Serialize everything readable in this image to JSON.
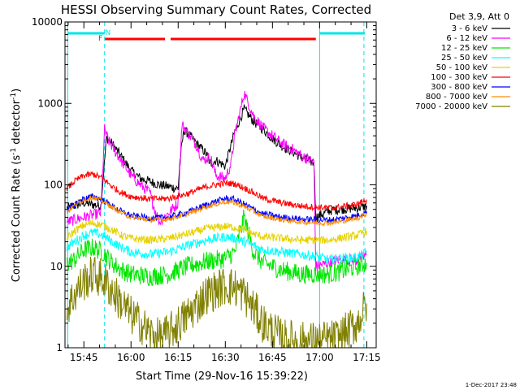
{
  "chart_data": {
    "type": "line",
    "title": "HESSI Observing Summary Count Rates, Corrected",
    "xlabel": "Start Time (29-Nov-16 15:39:22)",
    "ylabel_prefix": "Corrected Count Rate (s",
    "ylabel_sup1": "-1",
    "ylabel_mid": " detector",
    "ylabel_sup2": "-1",
    "ylabel_suffix": ")",
    "x_range_minutes": [
      15.65,
      17.3
    ],
    "xlim": [
      "15:39",
      "17:18"
    ],
    "ylim": [
      1,
      10000
    ],
    "y_scale": "log",
    "grid": false,
    "legend_placement": "right",
    "legend_title": "Det 3,9, Att 0",
    "footer": "1-Dec-2017 23:48",
    "x_ticks": [
      {
        "label": "15:45",
        "hour": 15.75
      },
      {
        "label": "16:00",
        "hour": 16.0
      },
      {
        "label": "16:15",
        "hour": 16.25
      },
      {
        "label": "16:30",
        "hour": 16.5
      },
      {
        "label": "16:45",
        "hour": 16.75
      },
      {
        "label": "17:00",
        "hour": 17.0
      },
      {
        "label": "17:15",
        "hour": 17.25
      }
    ],
    "y_ticks": [
      {
        "label": "1",
        "value": 1
      },
      {
        "label": "10",
        "value": 10
      },
      {
        "label": "100",
        "value": 100
      },
      {
        "label": "1000",
        "value": 1000
      },
      {
        "label": "10000",
        "value": 10000
      }
    ],
    "flags": {
      "labels": {
        "F": "F",
        "N": "N"
      },
      "colors": {
        "night": "#00e5e5",
        "flare": "#ff0000",
        "saa": "#00e5e5"
      },
      "night_intervals": [
        [
          15.665,
          15.86
        ],
        [
          17.0,
          17.24
        ]
      ],
      "flare_intervals": [
        [
          15.862,
          16.18
        ],
        [
          16.21,
          16.98
        ]
      ],
      "F_marker_hour": 15.838,
      "N_marker_hour": 15.878,
      "night_boundaries": [
        15.665,
        15.86,
        17.0,
        17.235
      ]
    },
    "series": [
      {
        "name": "3 - 6 keV",
        "color": "#000000",
        "points": [
          [
            15.66,
            52
          ],
          [
            15.75,
            60
          ],
          [
            15.84,
            55
          ],
          [
            15.87,
            380
          ],
          [
            15.9,
            320
          ],
          [
            15.95,
            220
          ],
          [
            16.0,
            150
          ],
          [
            16.05,
            120
          ],
          [
            16.1,
            110
          ],
          [
            16.15,
            100
          ],
          [
            16.2,
            95
          ],
          [
            16.25,
            90
          ],
          [
            16.26,
            200
          ],
          [
            16.28,
            470
          ],
          [
            16.3,
            430
          ],
          [
            16.35,
            320
          ],
          [
            16.4,
            240
          ],
          [
            16.42,
            180
          ],
          [
            16.45,
            200
          ],
          [
            16.5,
            170
          ],
          [
            16.55,
            450
          ],
          [
            16.6,
            850
          ],
          [
            16.65,
            600
          ],
          [
            16.7,
            480
          ],
          [
            16.75,
            370
          ],
          [
            16.8,
            300
          ],
          [
            16.85,
            260
          ],
          [
            16.9,
            220
          ],
          [
            16.94,
            200
          ],
          [
            16.97,
            185
          ],
          [
            16.98,
            40
          ],
          [
            17.05,
            48
          ],
          [
            17.1,
            50
          ],
          [
            17.2,
            52
          ],
          [
            17.25,
            55
          ]
        ]
      },
      {
        "name": "6 - 12 keV",
        "color": "#ff00ff",
        "points": [
          [
            15.66,
            35
          ],
          [
            15.75,
            40
          ],
          [
            15.84,
            45
          ],
          [
            15.86,
            480
          ],
          [
            15.88,
            350
          ],
          [
            15.92,
            250
          ],
          [
            15.96,
            180
          ],
          [
            16.0,
            130
          ],
          [
            16.05,
            100
          ],
          [
            16.1,
            80
          ],
          [
            16.12,
            55
          ],
          [
            16.15,
            35
          ],
          [
            16.2,
            45
          ],
          [
            16.25,
            60
          ],
          [
            16.27,
            550
          ],
          [
            16.3,
            440
          ],
          [
            16.35,
            300
          ],
          [
            16.38,
            200
          ],
          [
            16.42,
            220
          ],
          [
            16.45,
            130
          ],
          [
            16.5,
            120
          ],
          [
            16.53,
            180
          ],
          [
            16.55,
            400
          ],
          [
            16.6,
            1350
          ],
          [
            16.65,
            700
          ],
          [
            16.7,
            500
          ],
          [
            16.75,
            400
          ],
          [
            16.8,
            320
          ],
          [
            16.85,
            280
          ],
          [
            16.9,
            230
          ],
          [
            16.95,
            200
          ],
          [
            16.97,
            190
          ],
          [
            16.98,
            10
          ],
          [
            17.05,
            11
          ],
          [
            17.1,
            12
          ],
          [
            17.2,
            12
          ],
          [
            17.25,
            14
          ]
        ]
      },
      {
        "name": "12 - 25 keV",
        "color": "#00e600",
        "points": [
          [
            15.66,
            11
          ],
          [
            15.7,
            12
          ],
          [
            15.75,
            16
          ],
          [
            15.8,
            17
          ],
          [
            15.85,
            15
          ],
          [
            15.9,
            11
          ],
          [
            15.95,
            9
          ],
          [
            16.0,
            8
          ],
          [
            16.1,
            7.5
          ],
          [
            16.2,
            8
          ],
          [
            16.3,
            10
          ],
          [
            16.4,
            11.5
          ],
          [
            16.5,
            12.5
          ],
          [
            16.55,
            15
          ],
          [
            16.6,
            40
          ],
          [
            16.65,
            15
          ],
          [
            16.7,
            11
          ],
          [
            16.8,
            9
          ],
          [
            16.9,
            8
          ],
          [
            17.0,
            8
          ],
          [
            17.05,
            8
          ],
          [
            17.1,
            8.5
          ],
          [
            17.2,
            10
          ],
          [
            17.25,
            11
          ]
        ]
      },
      {
        "name": "25 - 50 keV",
        "color": "#00ffff",
        "points": [
          [
            15.66,
            17
          ],
          [
            15.7,
            20
          ],
          [
            15.75,
            24
          ],
          [
            15.8,
            26
          ],
          [
            15.85,
            24
          ],
          [
            15.9,
            20
          ],
          [
            15.95,
            17
          ],
          [
            16.0,
            15
          ],
          [
            16.1,
            14
          ],
          [
            16.2,
            15
          ],
          [
            16.3,
            18
          ],
          [
            16.4,
            21
          ],
          [
            16.5,
            23
          ],
          [
            16.55,
            22
          ],
          [
            16.6,
            20
          ],
          [
            16.65,
            18
          ],
          [
            16.7,
            16
          ],
          [
            16.8,
            15
          ],
          [
            16.9,
            14
          ],
          [
            17.0,
            13
          ],
          [
            17.05,
            12
          ],
          [
            17.1,
            12.5
          ],
          [
            17.2,
            13
          ],
          [
            17.25,
            15
          ]
        ]
      },
      {
        "name": "50 - 100 keV",
        "color": "#e6d200",
        "points": [
          [
            15.66,
            22
          ],
          [
            15.7,
            27
          ],
          [
            15.75,
            32
          ],
          [
            15.8,
            34
          ],
          [
            15.85,
            32
          ],
          [
            15.9,
            28
          ],
          [
            15.95,
            24
          ],
          [
            16.0,
            22
          ],
          [
            16.1,
            21
          ],
          [
            16.2,
            22
          ],
          [
            16.3,
            25
          ],
          [
            16.4,
            29
          ],
          [
            16.5,
            31
          ],
          [
            16.55,
            30
          ],
          [
            16.6,
            28
          ],
          [
            16.65,
            25
          ],
          [
            16.7,
            23
          ],
          [
            16.8,
            22
          ],
          [
            16.9,
            21
          ],
          [
            17.0,
            21
          ],
          [
            17.05,
            21
          ],
          [
            17.1,
            22
          ],
          [
            17.2,
            24
          ],
          [
            17.25,
            27
          ]
        ]
      },
      {
        "name": "100 - 300 keV",
        "color": "#ff0000",
        "points": [
          [
            15.66,
            90
          ],
          [
            15.7,
            110
          ],
          [
            15.75,
            130
          ],
          [
            15.8,
            135
          ],
          [
            15.85,
            120
          ],
          [
            15.9,
            95
          ],
          [
            15.95,
            80
          ],
          [
            16.0,
            72
          ],
          [
            16.1,
            67
          ],
          [
            16.2,
            68
          ],
          [
            16.3,
            78
          ],
          [
            16.4,
            95
          ],
          [
            16.5,
            105
          ],
          [
            16.55,
            103
          ],
          [
            16.6,
            92
          ],
          [
            16.65,
            80
          ],
          [
            16.7,
            68
          ],
          [
            16.8,
            60
          ],
          [
            16.9,
            55
          ],
          [
            17.0,
            53
          ],
          [
            17.05,
            52
          ],
          [
            17.1,
            53
          ],
          [
            17.2,
            58
          ],
          [
            17.25,
            66
          ]
        ]
      },
      {
        "name": "300 - 800 keV",
        "color": "#0000ff",
        "points": [
          [
            15.66,
            48
          ],
          [
            15.7,
            58
          ],
          [
            15.75,
            68
          ],
          [
            15.8,
            72
          ],
          [
            15.85,
            65
          ],
          [
            15.9,
            55
          ],
          [
            15.95,
            47
          ],
          [
            16.0,
            42
          ],
          [
            16.1,
            39
          ],
          [
            16.2,
            40
          ],
          [
            16.3,
            46
          ],
          [
            16.4,
            57
          ],
          [
            16.5,
            68
          ],
          [
            16.55,
            66
          ],
          [
            16.6,
            58
          ],
          [
            16.65,
            50
          ],
          [
            16.7,
            44
          ],
          [
            16.8,
            40
          ],
          [
            16.9,
            38
          ],
          [
            17.0,
            37
          ],
          [
            17.05,
            37
          ],
          [
            17.1,
            38
          ],
          [
            17.2,
            42
          ],
          [
            17.25,
            47
          ]
        ]
      },
      {
        "name": "800 - 7000 keV",
        "color": "#ff8c00",
        "points": [
          [
            15.66,
            46
          ],
          [
            15.7,
            56
          ],
          [
            15.75,
            66
          ],
          [
            15.8,
            70
          ],
          [
            15.85,
            63
          ],
          [
            15.9,
            53
          ],
          [
            15.95,
            45
          ],
          [
            16.0,
            40
          ],
          [
            16.1,
            37
          ],
          [
            16.2,
            38
          ],
          [
            16.3,
            44
          ],
          [
            16.4,
            54
          ],
          [
            16.5,
            62
          ],
          [
            16.55,
            60
          ],
          [
            16.6,
            54
          ],
          [
            16.65,
            47
          ],
          [
            16.7,
            41
          ],
          [
            16.8,
            37
          ],
          [
            16.9,
            35
          ],
          [
            17.0,
            34
          ],
          [
            17.05,
            34
          ],
          [
            17.1,
            35
          ],
          [
            17.2,
            39
          ],
          [
            17.25,
            44
          ]
        ]
      },
      {
        "name": "7000 - 20000 keV",
        "color": "#808000",
        "points": [
          [
            15.66,
            3
          ],
          [
            15.7,
            4.5
          ],
          [
            15.75,
            6.5
          ],
          [
            15.8,
            8
          ],
          [
            15.85,
            7
          ],
          [
            15.9,
            5
          ],
          [
            15.95,
            3.5
          ],
          [
            16.0,
            2.5
          ],
          [
            16.05,
            2
          ],
          [
            16.1,
            1.5
          ],
          [
            16.15,
            1.3
          ],
          [
            16.2,
            1.5
          ],
          [
            16.3,
            2.5
          ],
          [
            16.4,
            4.5
          ],
          [
            16.5,
            5.8
          ],
          [
            16.55,
            5.5
          ],
          [
            16.6,
            4.5
          ],
          [
            16.65,
            3
          ],
          [
            16.7,
            2
          ],
          [
            16.75,
            1.6
          ],
          [
            16.8,
            1.3
          ],
          [
            16.9,
            1.2
          ],
          [
            17.0,
            1.2
          ],
          [
            17.1,
            1.3
          ],
          [
            17.2,
            2
          ],
          [
            17.25,
            3.5
          ]
        ]
      }
    ]
  }
}
